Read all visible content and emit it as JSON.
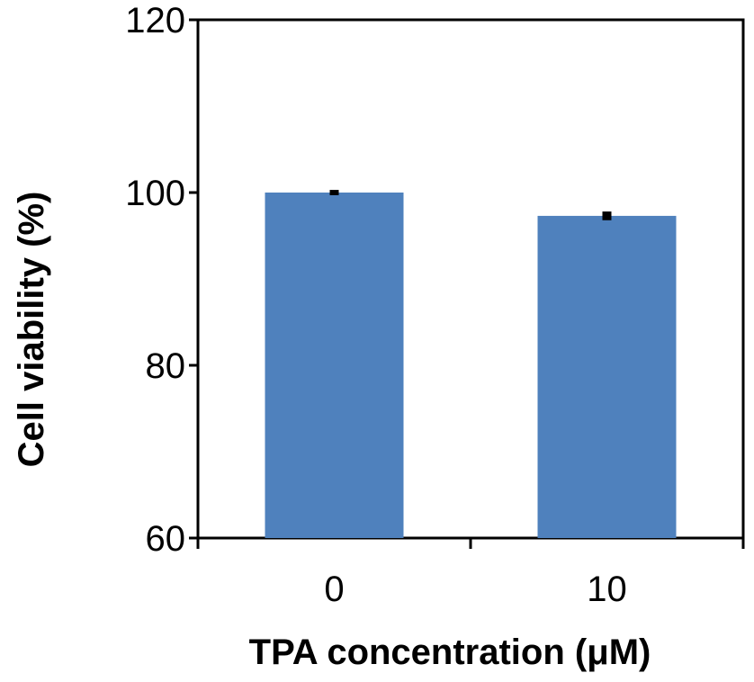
{
  "chart_data": {
    "type": "bar",
    "categories": [
      "0",
      "10"
    ],
    "values": [
      100,
      97.3
    ],
    "errors": [
      0.2,
      0.4
    ],
    "xlabel": "TPA concentration (μM)",
    "ylabel": "Cell viability (%)",
    "ylim": [
      60,
      120
    ],
    "yticks": [
      60,
      80,
      100,
      120
    ],
    "grid": false,
    "bar_color": "#4f81bd",
    "axis_color": "#000000"
  }
}
